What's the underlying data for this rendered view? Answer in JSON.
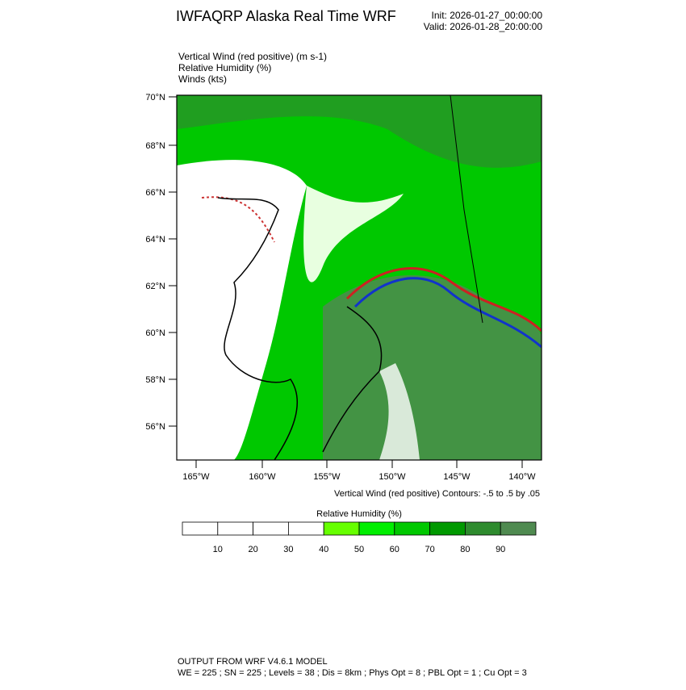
{
  "header": {
    "title": "IWFAQRP Alaska Real Time WRF",
    "init": "Init: 2026-01-27_00:00:00",
    "valid": "Valid: 2026-01-28_20:00:00"
  },
  "fields": [
    "Vertical Wind (red positive)   (m s-1)",
    "Relative Humidity   (%)",
    "Winds   (kts)"
  ],
  "map": {
    "lat_labels": [
      "70°N",
      "68°N",
      "66°N",
      "64°N",
      "62°N",
      "60°N",
      "58°N",
      "56°N"
    ],
    "lon_labels": [
      "165°W",
      "160°W",
      "155°W",
      "150°W",
      "145°W",
      "140°W"
    ],
    "caption": "Vertical Wind (red positive) Contours: -.5 to .5 by .05"
  },
  "colorbar": {
    "title": "Relative Humidity  (%)",
    "labels": [
      "10",
      "20",
      "30",
      "40",
      "50",
      "60",
      "70",
      "80",
      "90"
    ],
    "colors": [
      "#ffffff",
      "#ffffff",
      "#ffffff",
      "#ffffff",
      "#66ff00",
      "#00ee00",
      "#00c800",
      "#009900",
      "#2e8b2e",
      "#4f8a50"
    ]
  },
  "footer": {
    "line1": "OUTPUT FROM WRF V4.6.1 MODEL",
    "line2": "WE = 225 ; SN = 225 ; Levels = 38 ; Dis = 8km ; Phys Opt = 8 ; PBL Opt = 1 ; Cu Opt = 3"
  }
}
